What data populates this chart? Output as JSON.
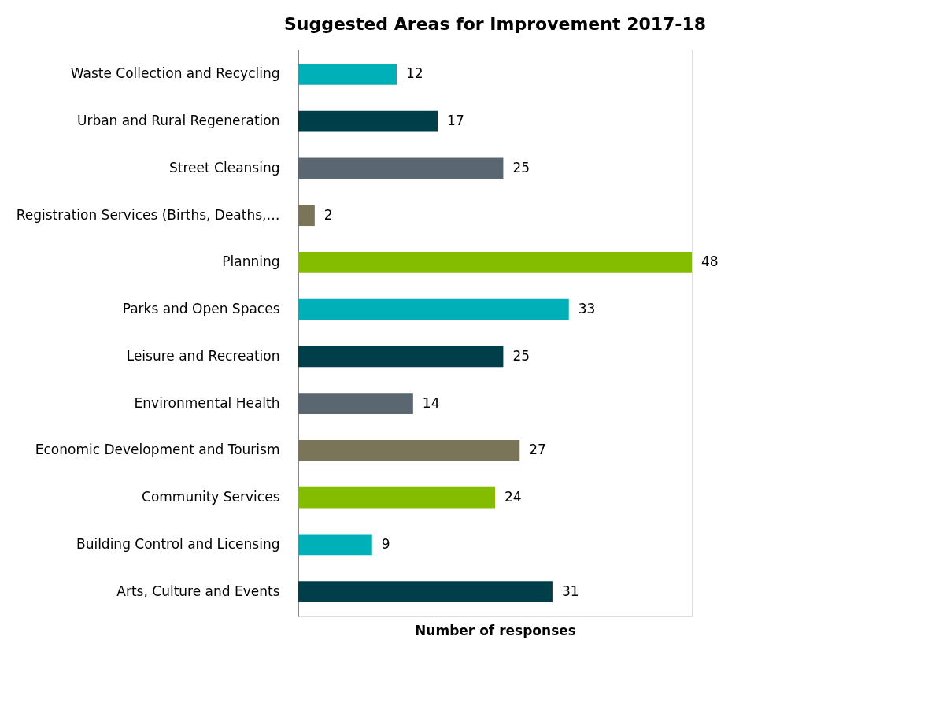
{
  "chart_data": {
    "type": "bar",
    "orientation": "horizontal",
    "title": "Suggested Areas for Improvement 2017-18",
    "xlabel": "Number of responses",
    "categories": [
      "Waste Collection and Recycling",
      "Urban and Rural Regeneration",
      "Street Cleansing",
      "Registration Services (Births, Deaths,…",
      "Planning",
      "Parks and Open Spaces",
      "Leisure and Recreation",
      "Environmental Health",
      "Economic Development and Tourism",
      "Community Services",
      "Building Control and Licensing",
      "Arts, Culture and Events"
    ],
    "values": [
      12,
      17,
      25,
      2,
      48,
      33,
      25,
      14,
      27,
      24,
      9,
      31
    ],
    "colors": [
      "#00b0b9",
      "#003f4a",
      "#5a6670",
      "#7a7458",
      "#84bd00",
      "#00b0b9",
      "#003f4a",
      "#5a6670",
      "#7a7458",
      "#84bd00",
      "#00b0b9",
      "#003f4a"
    ],
    "data_labels": true,
    "grid": false
  }
}
